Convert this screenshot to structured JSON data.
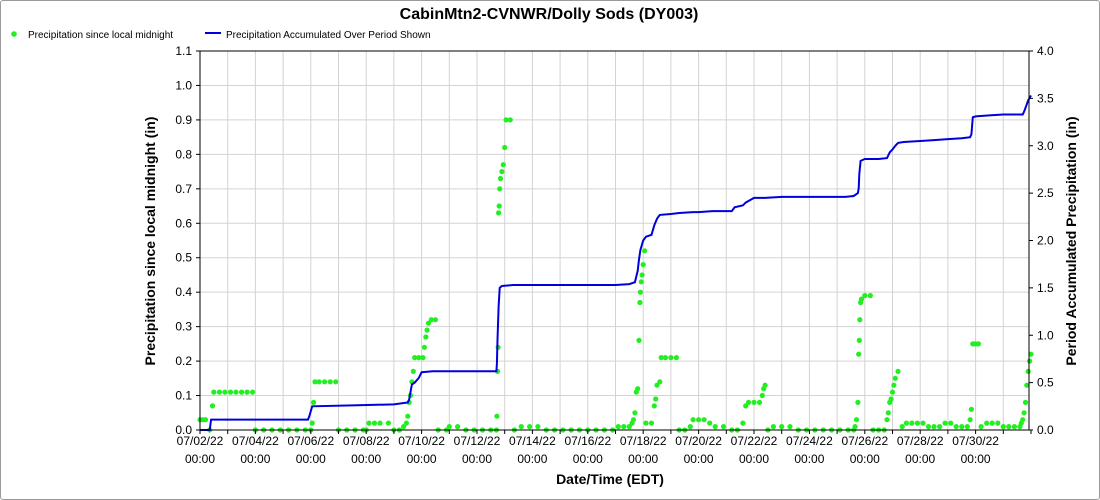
{
  "chart_data": {
    "type": "line",
    "title": "CabinMtn2-CVNWR/Dolly Sods (DY003)",
    "xlabel": "Date/Time (EDT)",
    "ylabel_left": "Precipitation since local midnight (in)",
    "ylabel_right": "Period Accumulated Precipitation (in)",
    "ylim_left": [
      0,
      1.1
    ],
    "ylim_right": [
      0,
      4.0
    ],
    "yticks_left": [
      "0.0",
      "0.1",
      "0.2",
      "0.3",
      "0.4",
      "0.5",
      "0.6",
      "0.7",
      "0.8",
      "0.9",
      "1.0",
      "1.1"
    ],
    "yticks_right": [
      "0.0",
      "0.5",
      "1.0",
      "1.5",
      "2.0",
      "2.5",
      "3.0",
      "3.5",
      "4.0"
    ],
    "xlim_days": [
      0,
      30
    ],
    "x_ticks": [
      {
        "day": 0,
        "date": "07/02/22",
        "time": "00:00"
      },
      {
        "day": 2,
        "date": "07/04/22",
        "time": "00:00"
      },
      {
        "day": 4,
        "date": "07/06/22",
        "time": "00:00"
      },
      {
        "day": 6,
        "date": "07/08/22",
        "time": "00:00"
      },
      {
        "day": 8,
        "date": "07/10/22",
        "time": "00:00"
      },
      {
        "day": 10,
        "date": "07/12/22",
        "time": "00:00"
      },
      {
        "day": 12,
        "date": "07/14/22",
        "time": "00:00"
      },
      {
        "day": 14,
        "date": "07/16/22",
        "time": "00:00"
      },
      {
        "day": 16,
        "date": "07/18/22",
        "time": "00:00"
      },
      {
        "day": 18,
        "date": "07/20/22",
        "time": "00:00"
      },
      {
        "day": 20,
        "date": "07/22/22",
        "time": "00:00"
      },
      {
        "day": 22,
        "date": "07/24/22",
        "time": "00:00"
      },
      {
        "day": 24,
        "date": "07/26/22",
        "time": "00:00"
      },
      {
        "day": 26,
        "date": "07/28/22",
        "time": "00:00"
      },
      {
        "day": 28,
        "date": "07/30/22",
        "time": "00:00"
      }
    ],
    "grid": true,
    "legend_position": "top-left",
    "series": [
      {
        "name": "Precipitation since local midnight",
        "axis": "left",
        "style": "points",
        "color": "#22ee22",
        "points": [
          [
            0.0,
            0.03
          ],
          [
            0.1,
            0.03
          ],
          [
            0.2,
            0.03
          ],
          [
            0.35,
            0.0
          ],
          [
            0.45,
            0.07
          ],
          [
            0.5,
            0.11
          ],
          [
            0.7,
            0.11
          ],
          [
            0.9,
            0.11
          ],
          [
            1.1,
            0.11
          ],
          [
            1.3,
            0.11
          ],
          [
            1.5,
            0.11
          ],
          [
            1.7,
            0.11
          ],
          [
            1.9,
            0.11
          ],
          [
            2.0,
            0.0
          ],
          [
            2.3,
            0.0
          ],
          [
            2.6,
            0.0
          ],
          [
            2.9,
            0.0
          ],
          [
            3.2,
            0.0
          ],
          [
            3.5,
            0.0
          ],
          [
            3.8,
            0.0
          ],
          [
            4.0,
            0.0
          ],
          [
            4.05,
            0.02
          ],
          [
            4.1,
            0.08
          ],
          [
            4.15,
            0.14
          ],
          [
            4.3,
            0.14
          ],
          [
            4.5,
            0.14
          ],
          [
            4.7,
            0.14
          ],
          [
            4.9,
            0.14
          ],
          [
            5.0,
            0.0
          ],
          [
            5.3,
            0.0
          ],
          [
            5.6,
            0.0
          ],
          [
            5.9,
            0.0
          ],
          [
            6.0,
            0.0
          ],
          [
            6.1,
            0.02
          ],
          [
            6.3,
            0.02
          ],
          [
            6.5,
            0.02
          ],
          [
            6.8,
            0.02
          ],
          [
            7.0,
            0.0
          ],
          [
            7.2,
            0.0
          ],
          [
            7.35,
            0.01
          ],
          [
            7.45,
            0.02
          ],
          [
            7.5,
            0.04
          ],
          [
            7.55,
            0.08
          ],
          [
            7.6,
            0.1
          ],
          [
            7.65,
            0.14
          ],
          [
            7.7,
            0.17
          ],
          [
            7.75,
            0.21
          ],
          [
            7.9,
            0.21
          ],
          [
            8.05,
            0.21
          ],
          [
            8.1,
            0.24
          ],
          [
            8.15,
            0.27
          ],
          [
            8.2,
            0.29
          ],
          [
            8.25,
            0.31
          ],
          [
            8.35,
            0.32
          ],
          [
            8.5,
            0.32
          ],
          [
            8.6,
            0.0
          ],
          [
            8.9,
            0.0
          ],
          [
            9.0,
            0.01
          ],
          [
            9.3,
            0.01
          ],
          [
            9.6,
            0.0
          ],
          [
            9.9,
            0.0
          ],
          [
            10.2,
            0.0
          ],
          [
            10.5,
            0.0
          ],
          [
            10.7,
            0.0
          ],
          [
            10.72,
            0.04
          ],
          [
            10.74,
            0.17
          ],
          [
            10.76,
            0.24
          ],
          [
            10.78,
            0.63
          ],
          [
            10.8,
            0.65
          ],
          [
            10.82,
            0.7
          ],
          [
            10.85,
            0.73
          ],
          [
            10.9,
            0.75
          ],
          [
            10.95,
            0.77
          ],
          [
            11.0,
            0.82
          ],
          [
            11.05,
            0.9
          ],
          [
            11.2,
            0.9
          ],
          [
            11.35,
            0.0
          ],
          [
            11.6,
            0.01
          ],
          [
            11.9,
            0.01
          ],
          [
            12.2,
            0.01
          ],
          [
            12.5,
            0.0
          ],
          [
            12.8,
            0.0
          ],
          [
            13.1,
            0.0
          ],
          [
            13.4,
            0.0
          ],
          [
            13.7,
            0.0
          ],
          [
            14.0,
            0.0
          ],
          [
            14.3,
            0.0
          ],
          [
            14.6,
            0.0
          ],
          [
            14.9,
            0.0
          ],
          [
            15.1,
            0.01
          ],
          [
            15.3,
            0.01
          ],
          [
            15.5,
            0.01
          ],
          [
            15.6,
            0.02
          ],
          [
            15.65,
            0.03
          ],
          [
            15.7,
            0.05
          ],
          [
            15.75,
            0.11
          ],
          [
            15.8,
            0.12
          ],
          [
            15.85,
            0.26
          ],
          [
            15.88,
            0.37
          ],
          [
            15.9,
            0.4
          ],
          [
            15.93,
            0.43
          ],
          [
            15.96,
            0.45
          ],
          [
            16.0,
            0.48
          ],
          [
            16.05,
            0.52
          ],
          [
            16.1,
            0.02
          ],
          [
            16.3,
            0.02
          ],
          [
            16.4,
            0.07
          ],
          [
            16.45,
            0.09
          ],
          [
            16.5,
            0.13
          ],
          [
            16.6,
            0.14
          ],
          [
            16.65,
            0.21
          ],
          [
            16.8,
            0.21
          ],
          [
            17.0,
            0.21
          ],
          [
            17.2,
            0.21
          ],
          [
            17.3,
            0.0
          ],
          [
            17.5,
            0.0
          ],
          [
            17.7,
            0.01
          ],
          [
            17.8,
            0.03
          ],
          [
            18.0,
            0.03
          ],
          [
            18.2,
            0.03
          ],
          [
            18.4,
            0.02
          ],
          [
            18.6,
            0.01
          ],
          [
            18.9,
            0.01
          ],
          [
            19.2,
            0.0
          ],
          [
            19.4,
            0.0
          ],
          [
            19.6,
            0.02
          ],
          [
            19.7,
            0.07
          ],
          [
            19.8,
            0.08
          ],
          [
            20.0,
            0.08
          ],
          [
            20.2,
            0.08
          ],
          [
            20.3,
            0.1
          ],
          [
            20.35,
            0.12
          ],
          [
            20.4,
            0.13
          ],
          [
            20.5,
            0.0
          ],
          [
            20.7,
            0.01
          ],
          [
            21.0,
            0.01
          ],
          [
            21.3,
            0.01
          ],
          [
            21.6,
            0.0
          ],
          [
            21.9,
            0.0
          ],
          [
            22.2,
            0.0
          ],
          [
            22.5,
            0.0
          ],
          [
            22.8,
            0.0
          ],
          [
            23.1,
            0.0
          ],
          [
            23.4,
            0.0
          ],
          [
            23.6,
            0.0
          ],
          [
            23.65,
            0.01
          ],
          [
            23.7,
            0.03
          ],
          [
            23.75,
            0.08
          ],
          [
            23.78,
            0.22
          ],
          [
            23.8,
            0.26
          ],
          [
            23.82,
            0.32
          ],
          [
            23.85,
            0.37
          ],
          [
            23.88,
            0.38
          ],
          [
            24.0,
            0.39
          ],
          [
            24.2,
            0.39
          ],
          [
            24.3,
            0.0
          ],
          [
            24.5,
            0.0
          ],
          [
            24.7,
            0.0
          ],
          [
            24.8,
            0.03
          ],
          [
            24.85,
            0.05
          ],
          [
            24.9,
            0.08
          ],
          [
            24.95,
            0.09
          ],
          [
            25.0,
            0.11
          ],
          [
            25.05,
            0.13
          ],
          [
            25.1,
            0.15
          ],
          [
            25.2,
            0.17
          ],
          [
            25.35,
            0.01
          ],
          [
            25.5,
            0.02
          ],
          [
            25.7,
            0.02
          ],
          [
            25.9,
            0.02
          ],
          [
            26.1,
            0.02
          ],
          [
            26.3,
            0.01
          ],
          [
            26.5,
            0.01
          ],
          [
            26.7,
            0.01
          ],
          [
            26.9,
            0.02
          ],
          [
            27.1,
            0.02
          ],
          [
            27.3,
            0.01
          ],
          [
            27.5,
            0.01
          ],
          [
            27.7,
            0.01
          ],
          [
            27.8,
            0.03
          ],
          [
            27.85,
            0.06
          ],
          [
            27.9,
            0.25
          ],
          [
            28.0,
            0.25
          ],
          [
            28.1,
            0.25
          ],
          [
            28.2,
            0.01
          ],
          [
            28.4,
            0.02
          ],
          [
            28.6,
            0.02
          ],
          [
            28.8,
            0.02
          ],
          [
            29.0,
            0.01
          ],
          [
            29.2,
            0.01
          ],
          [
            29.4,
            0.01
          ],
          [
            29.6,
            0.01
          ],
          [
            29.65,
            0.02
          ],
          [
            29.7,
            0.03
          ],
          [
            29.75,
            0.05
          ],
          [
            29.8,
            0.08
          ],
          [
            29.85,
            0.13
          ],
          [
            29.9,
            0.17
          ],
          [
            29.95,
            0.2
          ],
          [
            30.0,
            0.22
          ]
        ]
      },
      {
        "name": "Precipitation Accumulated Over Period Shown",
        "axis": "right",
        "style": "line",
        "color": "#0000dd",
        "points": [
          [
            0.0,
            0.0
          ],
          [
            0.35,
            0.0
          ],
          [
            0.4,
            0.11
          ],
          [
            3.9,
            0.11
          ],
          [
            3.95,
            0.15
          ],
          [
            4.0,
            0.2
          ],
          [
            4.05,
            0.25
          ],
          [
            5.5,
            0.26
          ],
          [
            7.0,
            0.27
          ],
          [
            7.5,
            0.29
          ],
          [
            7.55,
            0.32
          ],
          [
            7.6,
            0.4
          ],
          [
            7.65,
            0.48
          ],
          [
            7.75,
            0.5
          ],
          [
            7.9,
            0.55
          ],
          [
            8.0,
            0.61
          ],
          [
            8.4,
            0.62
          ],
          [
            9.5,
            0.62
          ],
          [
            10.7,
            0.62
          ],
          [
            10.72,
            0.7
          ],
          [
            10.74,
            0.95
          ],
          [
            10.78,
            1.3
          ],
          [
            10.82,
            1.5
          ],
          [
            10.9,
            1.52
          ],
          [
            11.3,
            1.53
          ],
          [
            12.0,
            1.53
          ],
          [
            13.5,
            1.53
          ],
          [
            15.0,
            1.53
          ],
          [
            15.5,
            1.54
          ],
          [
            15.7,
            1.56
          ],
          [
            15.75,
            1.62
          ],
          [
            15.8,
            1.68
          ],
          [
            15.85,
            1.8
          ],
          [
            15.9,
            1.9
          ],
          [
            16.0,
            2.0
          ],
          [
            16.1,
            2.04
          ],
          [
            16.3,
            2.06
          ],
          [
            16.4,
            2.16
          ],
          [
            16.5,
            2.23
          ],
          [
            16.6,
            2.27
          ],
          [
            17.0,
            2.28
          ],
          [
            17.3,
            2.29
          ],
          [
            17.8,
            2.3
          ],
          [
            18.0,
            2.3
          ],
          [
            18.5,
            2.31
          ],
          [
            19.2,
            2.31
          ],
          [
            19.3,
            2.35
          ],
          [
            19.6,
            2.37
          ],
          [
            19.7,
            2.4
          ],
          [
            20.0,
            2.45
          ],
          [
            20.3,
            2.45
          ],
          [
            20.4,
            2.45
          ],
          [
            21.0,
            2.46
          ],
          [
            21.6,
            2.46
          ],
          [
            22.2,
            2.46
          ],
          [
            22.8,
            2.46
          ],
          [
            23.3,
            2.46
          ],
          [
            23.6,
            2.47
          ],
          [
            23.75,
            2.5
          ],
          [
            23.78,
            2.55
          ],
          [
            23.8,
            2.7
          ],
          [
            23.85,
            2.84
          ],
          [
            24.0,
            2.86
          ],
          [
            24.5,
            2.86
          ],
          [
            24.8,
            2.87
          ],
          [
            24.9,
            2.93
          ],
          [
            25.0,
            2.96
          ],
          [
            25.1,
            3.0
          ],
          [
            25.2,
            3.03
          ],
          [
            25.4,
            3.04
          ],
          [
            26.0,
            3.05
          ],
          [
            26.5,
            3.06
          ],
          [
            27.0,
            3.07
          ],
          [
            27.5,
            3.08
          ],
          [
            27.8,
            3.09
          ],
          [
            27.85,
            3.12
          ],
          [
            27.9,
            3.3
          ],
          [
            28.0,
            3.31
          ],
          [
            28.5,
            3.32
          ],
          [
            29.0,
            3.33
          ],
          [
            29.5,
            3.33
          ],
          [
            29.7,
            3.33
          ],
          [
            29.75,
            3.36
          ],
          [
            29.8,
            3.4
          ],
          [
            29.9,
            3.48
          ],
          [
            30.0,
            3.53
          ]
        ]
      }
    ]
  }
}
